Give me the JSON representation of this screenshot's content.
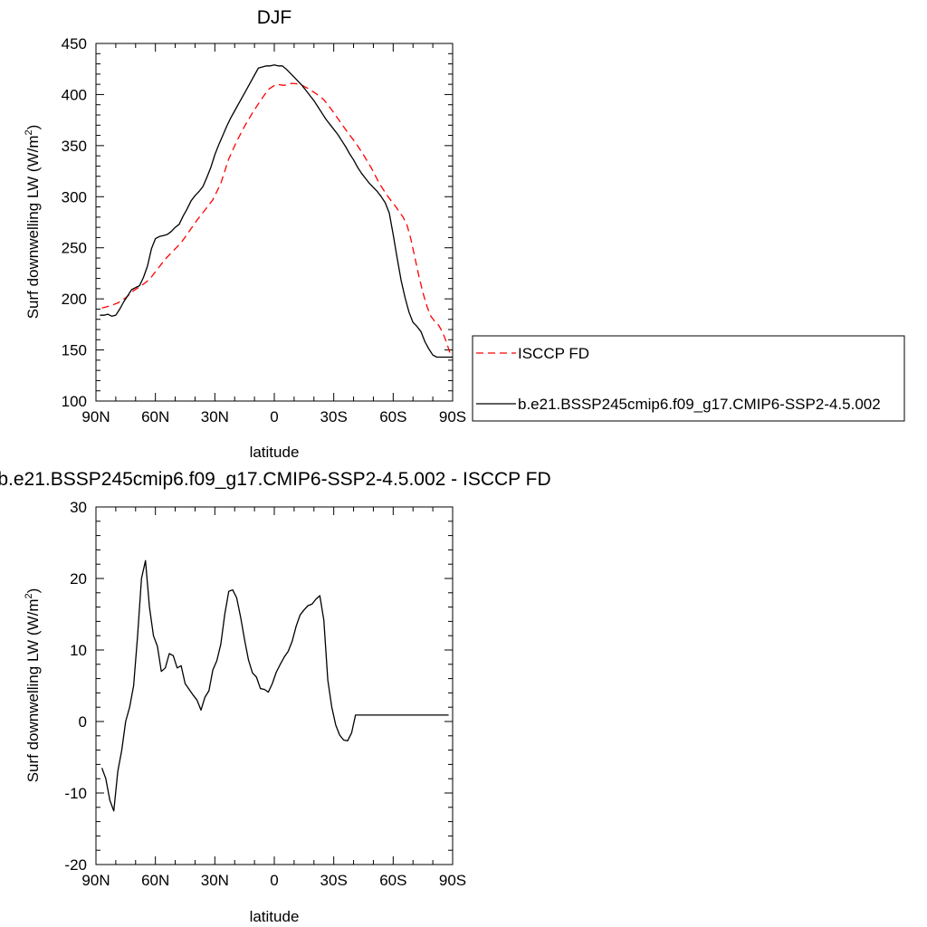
{
  "chart_data": [
    {
      "type": "line",
      "title": "DJF",
      "xlabel": "latitude",
      "ylabel": "Surf downwelling LW (W/m",
      "ylabel_sup": "2",
      "ylabel_close": ")",
      "xlim": [
        -90,
        90
      ],
      "ylim": [
        100,
        450
      ],
      "xticks": [
        -90,
        -60,
        -30,
        0,
        30,
        60,
        90
      ],
      "xtick_labels": [
        "90N",
        "60N",
        "30N",
        "0",
        "30S",
        "60S",
        "90S"
      ],
      "yticks": [
        100,
        150,
        200,
        250,
        300,
        350,
        400,
        450
      ],
      "ytick_labels": [
        "100",
        "150",
        "200",
        "250",
        "300",
        "350",
        "400",
        "450"
      ],
      "grid": false,
      "legend_position": "right",
      "series": [
        {
          "name": "ISCCP FD",
          "color": "#ff0000",
          "dash": "dashed",
          "x": [
            -87,
            -83,
            -79,
            -75,
            -71,
            -67,
            -63,
            -59,
            -55,
            -51,
            -47,
            -43,
            -39,
            -35,
            -31,
            -27,
            -23,
            -19,
            -15,
            -11,
            -7,
            -3,
            1,
            5,
            9,
            13,
            17,
            21,
            25,
            29,
            33,
            37,
            41,
            45,
            49,
            53,
            57,
            61,
            65,
            67,
            69,
            71,
            73,
            75,
            77,
            79,
            81,
            83,
            85,
            87,
            89
          ],
          "y": [
            191,
            193,
            196,
            201,
            208,
            213,
            219,
            229,
            239,
            247,
            255,
            266,
            277,
            287,
            297,
            313,
            337,
            354,
            369,
            382,
            394,
            405,
            410,
            409,
            411,
            410,
            406,
            401,
            395,
            385,
            374,
            363,
            353,
            341,
            328,
            313,
            301,
            291,
            280,
            272,
            258,
            240,
            222,
            206,
            193,
            183,
            178,
            174,
            167,
            157,
            145
          ]
        },
        {
          "name": "b.e21.BSSP245cmip6.f09_g17.CMIP6-SSP2-4.5.002",
          "color": "#000000",
          "dash": "solid",
          "x": [
            -88,
            -86,
            -84,
            -82,
            -80,
            -78,
            -76,
            -74,
            -72,
            -70,
            -68,
            -66,
            -64,
            -62,
            -60,
            -58,
            -56,
            -54,
            -52,
            -50,
            -48,
            -46,
            -44,
            -42,
            -40,
            -38,
            -36,
            -34,
            -32,
            -30,
            -28,
            -26,
            -24,
            -22,
            -20,
            -18,
            -16,
            -14,
            -12,
            -10,
            -8,
            -6,
            -4,
            -2,
            0,
            2,
            4,
            6,
            8,
            10,
            12,
            14,
            16,
            18,
            20,
            22,
            24,
            26,
            28,
            30,
            32,
            34,
            36,
            38,
            40,
            42,
            44,
            46,
            48,
            50,
            52,
            54,
            56,
            58,
            60,
            62,
            64,
            66,
            68,
            70,
            72,
            74,
            76,
            78,
            80,
            82,
            84,
            86,
            88,
            90
          ],
          "y": [
            184,
            184,
            185,
            183,
            184,
            190,
            197,
            203,
            209,
            211,
            213,
            221,
            232,
            249,
            259,
            261,
            262,
            263,
            266,
            270,
            273,
            281,
            288,
            296,
            301,
            305,
            310,
            319,
            329,
            341,
            351,
            360,
            369,
            377,
            384,
            391,
            398,
            405,
            412,
            419,
            426,
            427,
            428,
            428,
            429,
            428,
            428,
            425,
            421,
            417,
            413,
            409,
            404,
            399,
            394,
            388,
            382,
            376,
            371,
            366,
            361,
            355,
            349,
            342,
            336,
            329,
            323,
            318,
            313,
            309,
            305,
            300,
            294,
            284,
            263,
            240,
            218,
            201,
            187,
            177,
            173,
            168,
            158,
            151,
            145,
            143,
            143,
            143,
            143,
            143
          ]
        }
      ]
    },
    {
      "type": "line",
      "title": "b.e21.BSSP245cmip6.f09_g17.CMIP6-SSP2-4.5.002 - ISCCP FD",
      "xlabel": "latitude",
      "ylabel": "Surf downwelling LW (W/m",
      "ylabel_sup": "2",
      "ylabel_close": ")",
      "xlim": [
        -90,
        90
      ],
      "ylim": [
        -20,
        30
      ],
      "xticks": [
        -90,
        -60,
        -30,
        0,
        30,
        60,
        90
      ],
      "xtick_labels": [
        "90N",
        "60N",
        "30N",
        "0",
        "30S",
        "60S",
        "90S"
      ],
      "yticks": [
        -20,
        -10,
        0,
        10,
        20,
        30
      ],
      "ytick_labels": [
        "-20",
        "-10",
        "0",
        "10",
        "20",
        "30"
      ],
      "grid": false,
      "series": [
        {
          "color": "#000000",
          "dash": "solid",
          "x": [
            -87,
            -85,
            -83,
            -81,
            -79,
            -77,
            -75,
            -73,
            -71,
            -69,
            -67,
            -65,
            -63,
            -61,
            -59,
            -57,
            -55,
            -53,
            -51,
            -49,
            -47,
            -45,
            -43,
            -41,
            -39,
            -37,
            -35,
            -33,
            -31,
            -29,
            -27,
            -25,
            -23,
            -21,
            -19,
            -17,
            -15,
            -13,
            -11,
            -9,
            -7,
            -5,
            -3,
            -1,
            1,
            3,
            5,
            7,
            9,
            11,
            13,
            15,
            17,
            19,
            21,
            23,
            25,
            27,
            29,
            31,
            33,
            35,
            37,
            39,
            41,
            43,
            45,
            47,
            49,
            51,
            53,
            55,
            57,
            59,
            61,
            63,
            65,
            67,
            69,
            71,
            73,
            75,
            77,
            79,
            81,
            83,
            85,
            87,
            88
          ],
          "y": [
            -6.5,
            -8,
            -11,
            -12.5,
            -7,
            -4,
            0,
            2,
            5,
            12,
            20,
            22.5,
            16,
            12,
            10.5,
            7,
            7.5,
            9.5,
            9.2,
            7.5,
            7.8,
            5.3,
            4.5,
            3.7,
            3,
            1.6,
            3.4,
            4.3,
            7.2,
            8.5,
            10.8,
            15,
            18.2,
            18.4,
            17.3,
            14.6,
            11.4,
            8.6,
            6.8,
            6.2,
            4.6,
            4.5,
            4.1,
            5.3,
            6.9,
            8,
            9,
            9.8,
            11.2,
            13.3,
            14.9,
            15.6,
            16.2,
            16.4,
            17.1,
            17.6,
            14.2,
            5.8,
            2,
            -0.5,
            -1.9,
            -2.6,
            -2.7,
            -1.6,
            0.9,
            0.9,
            0.9,
            0.9,
            0.9,
            0.9,
            0.9,
            0.9,
            0.9,
            0.9,
            0.9,
            0.9,
            0.9,
            0.9,
            0.9,
            0.9,
            0.9,
            0.9,
            0.9,
            0.9,
            0.9,
            0.9,
            0.9,
            0.9,
            0.9
          ]
        }
      ]
    }
  ]
}
